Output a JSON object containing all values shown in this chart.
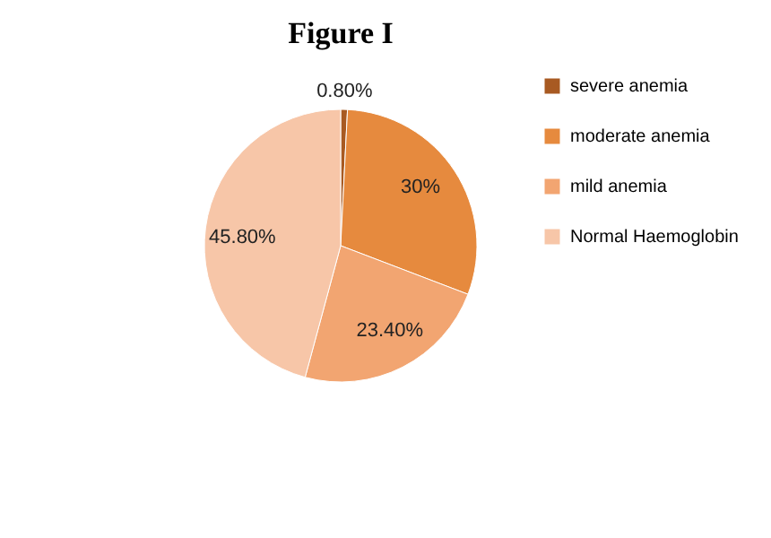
{
  "chart_data": {
    "type": "pie",
    "title": "Figure I",
    "categories": [
      "severe anemia",
      "moderate anemia",
      "mild anemia",
      "Normal Haemoglobin"
    ],
    "values": [
      0.8,
      30,
      23.4,
      45.8
    ],
    "colors": [
      "#a85a22",
      "#e68a3e",
      "#f2a571",
      "#f7c6a8"
    ],
    "value_labels": [
      "0.80%",
      "30%",
      "23.40%",
      "45.80%"
    ],
    "legend": "right"
  }
}
